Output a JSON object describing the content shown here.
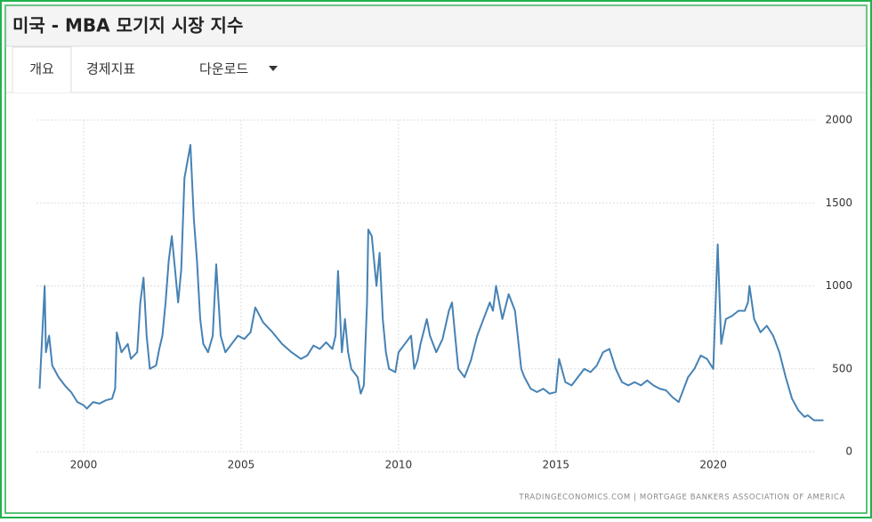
{
  "tabs": [
    "개요",
    "경제지표",
    "다운로드"
  ],
  "chart_data": {
    "type": "line",
    "title": "미국 - MBA 모기지 시장 지수",
    "source": "TRADINGECONOMICS.COM  |  MORTGAGE BANKERS ASSOCIATION OF AMERICA",
    "x": [
      1998.6,
      1998.76,
      1998.8,
      1998.9,
      1999.0,
      1999.2,
      1999.4,
      1999.6,
      1999.8,
      2000.0,
      2000.1,
      2000.3,
      2000.5,
      2000.7,
      2000.9,
      2001.0,
      2001.05,
      2001.2,
      2001.4,
      2001.5,
      2001.7,
      2001.8,
      2001.9,
      2002.0,
      2002.1,
      2002.3,
      2002.4,
      2002.5,
      2002.6,
      2002.7,
      2002.8,
      2002.9,
      2003.0,
      2003.1,
      2003.2,
      2003.39,
      2003.5,
      2003.6,
      2003.7,
      2003.8,
      2003.95,
      2004.1,
      2004.21,
      2004.35,
      2004.5,
      2004.7,
      2004.9,
      2005.1,
      2005.3,
      2005.45,
      2005.7,
      2006.0,
      2006.3,
      2006.6,
      2006.9,
      2007.1,
      2007.3,
      2007.5,
      2007.7,
      2007.9,
      2008.0,
      2008.08,
      2008.2,
      2008.3,
      2008.4,
      2008.5,
      2008.7,
      2008.8,
      2008.9,
      2009.0,
      2009.04,
      2009.15,
      2009.3,
      2009.4,
      2009.5,
      2009.6,
      2009.7,
      2009.9,
      2010.0,
      2010.2,
      2010.4,
      2010.5,
      2010.6,
      2010.7,
      2010.9,
      2011.0,
      2011.2,
      2011.4,
      2011.6,
      2011.7,
      2011.8,
      2011.9,
      2012.1,
      2012.3,
      2012.5,
      2012.7,
      2012.9,
      2013.0,
      2013.1,
      2013.3,
      2013.5,
      2013.7,
      2013.9,
      2014.0,
      2014.2,
      2014.4,
      2014.6,
      2014.8,
      2015.0,
      2015.1,
      2015.3,
      2015.5,
      2015.7,
      2015.9,
      2016.1,
      2016.3,
      2016.5,
      2016.7,
      2016.9,
      2017.1,
      2017.3,
      2017.5,
      2017.7,
      2017.9,
      2018.1,
      2018.3,
      2018.5,
      2018.7,
      2018.9,
      2019.0,
      2019.2,
      2019.4,
      2019.6,
      2019.8,
      2020.0,
      2020.14,
      2020.25,
      2020.4,
      2020.6,
      2020.8,
      2021.0,
      2021.1,
      2021.15,
      2021.3,
      2021.5,
      2021.7,
      2021.9,
      2022.1,
      2022.3,
      2022.5,
      2022.7,
      2022.9,
      2023.0,
      2023.2,
      2023.5
    ],
    "series": [
      {
        "name": "MBA 모기지 시장 지수",
        "color": "#4682b4",
        "values": [
          380,
          1000,
          600,
          700,
          520,
          450,
          400,
          360,
          300,
          280,
          260,
          300,
          290,
          310,
          320,
          380,
          720,
          600,
          650,
          560,
          600,
          900,
          1050,
          700,
          500,
          520,
          620,
          700,
          900,
          1150,
          1300,
          1100,
          900,
          1100,
          1650,
          1850,
          1400,
          1150,
          800,
          650,
          600,
          700,
          1130,
          700,
          600,
          650,
          700,
          680,
          720,
          870,
          780,
          720,
          650,
          600,
          560,
          580,
          640,
          620,
          660,
          620,
          700,
          1090,
          600,
          800,
          600,
          500,
          450,
          350,
          400,
          900,
          1340,
          1300,
          1000,
          1200,
          800,
          600,
          500,
          480,
          600,
          650,
          700,
          500,
          550,
          650,
          800,
          700,
          600,
          680,
          850,
          900,
          700,
          500,
          450,
          550,
          700,
          800,
          900,
          850,
          1000,
          800,
          950,
          850,
          500,
          450,
          380,
          360,
          380,
          350,
          360,
          560,
          420,
          400,
          450,
          500,
          480,
          520,
          600,
          620,
          500,
          420,
          400,
          420,
          400,
          430,
          400,
          380,
          370,
          330,
          300,
          350,
          450,
          500,
          580,
          560,
          500,
          1250,
          650,
          800,
          820,
          850,
          850,
          900,
          1000,
          800,
          720,
          760,
          700,
          600,
          450,
          320,
          250,
          210,
          220,
          190,
          190
        ]
      }
    ],
    "xlim": [
      1998.5,
      2023.6
    ],
    "xticks": [
      2000,
      2005,
      2010,
      2015,
      2020
    ],
    "ylim": [
      0,
      2000
    ],
    "yticks": [
      0,
      500,
      1000,
      1500,
      2000
    ],
    "grid": true
  }
}
